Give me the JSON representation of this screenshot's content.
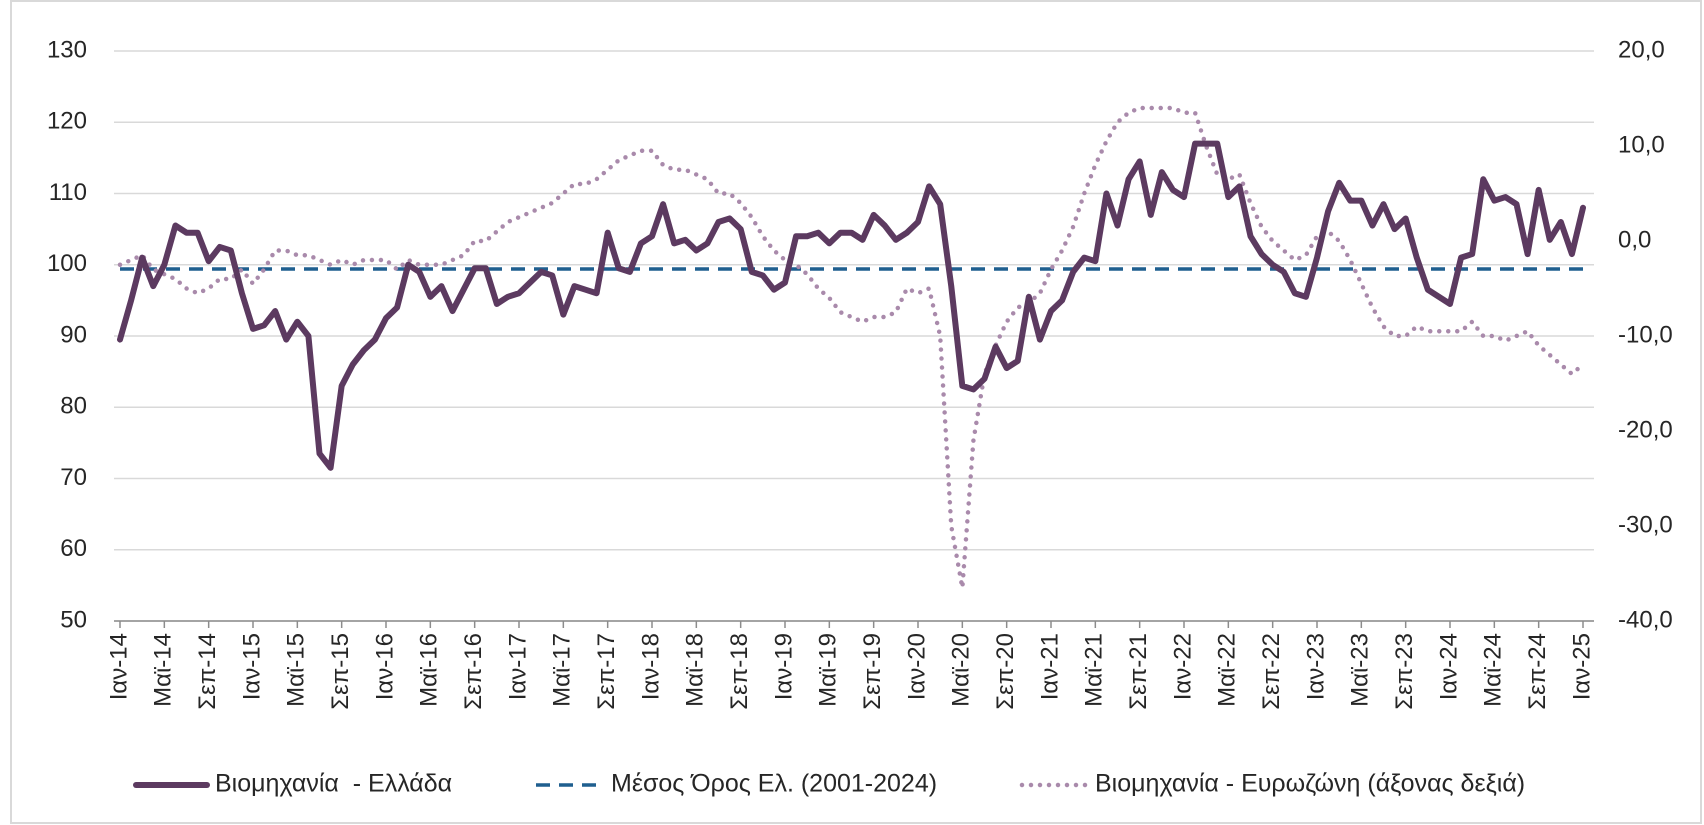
{
  "chart_data": {
    "type": "line",
    "categories": [
      "Ιαν-14",
      null,
      null,
      null,
      "Μαϊ-14",
      null,
      null,
      null,
      "Σεπ-14",
      null,
      null,
      null,
      "Ιαν-15",
      null,
      null,
      null,
      "Μαϊ-15",
      null,
      null,
      null,
      "Σεπ-15",
      null,
      null,
      null,
      "Ιαν-16",
      null,
      null,
      null,
      "Μαϊ-16",
      null,
      null,
      null,
      "Σεπ-16",
      null,
      null,
      null,
      "Ιαν-17",
      null,
      null,
      null,
      "Μαϊ-17",
      null,
      null,
      null,
      "Σεπ-17",
      null,
      null,
      null,
      "Ιαν-18",
      null,
      null,
      null,
      "Μαϊ-18",
      null,
      null,
      null,
      "Σεπ-18",
      null,
      null,
      null,
      "Ιαν-19",
      null,
      null,
      null,
      "Μαϊ-19",
      null,
      null,
      null,
      "Σεπ-19",
      null,
      null,
      null,
      "Ιαν-20",
      null,
      null,
      null,
      "Μαϊ-20",
      null,
      null,
      null,
      "Σεπ-20",
      null,
      null,
      null,
      "Ιαν-21",
      null,
      null,
      null,
      "Μαϊ-21",
      null,
      null,
      null,
      "Σεπ-21",
      null,
      null,
      null,
      "Ιαν-22",
      null,
      null,
      null,
      "Μαϊ-22",
      null,
      null,
      null,
      "Σεπ-22",
      null,
      null,
      null,
      "Ιαν-23",
      null,
      null,
      null,
      "Μαϊ-23",
      null,
      null,
      null,
      "Σεπ-23",
      null,
      null,
      null,
      "Ιαν-24",
      null,
      null,
      null,
      "Μαϊ-24",
      null,
      null,
      null,
      "Σεπ-24",
      null,
      null,
      null,
      "Ιαν-25"
    ],
    "series": [
      {
        "name": "Βιομηχανία  - Ελλάδα",
        "color": "#5c3a60",
        "line_style": "solid",
        "values": [
          89.5,
          95,
          101,
          97,
          100,
          105.5,
          104.5,
          104.5,
          100.5,
          102.5,
          102,
          96,
          91,
          91.5,
          93.5,
          89.5,
          92,
          90,
          73.5,
          71.5,
          83,
          86,
          88,
          89.5,
          92.5,
          94,
          100,
          99,
          95.5,
          97,
          93.5,
          96.5,
          99.5,
          99.5,
          94.5,
          95.5,
          96,
          97.5,
          99,
          98.5,
          93,
          97,
          96.5,
          96,
          104.5,
          99.5,
          99,
          103,
          104,
          108.5,
          103,
          103.5,
          102,
          103,
          106,
          106.5,
          105,
          99,
          98.5,
          96.5,
          97.5,
          104,
          104,
          104.5,
          103,
          104.5,
          104.5,
          103.5,
          107,
          105.5,
          103.5,
          104.5,
          106,
          111,
          108.5,
          97,
          83,
          82.5,
          84,
          88.5,
          85.5,
          86.5,
          95.5,
          89.5,
          93.5,
          95,
          99,
          101,
          100.5,
          110,
          105.5,
          112,
          114.5,
          107,
          113,
          110.5,
          109.5,
          117,
          117,
          117,
          109.5,
          111,
          104,
          101.5,
          100,
          99,
          96,
          95.5,
          101,
          107.5,
          111.5,
          109,
          109,
          105.5,
          108.5,
          105,
          106.5,
          101,
          96.5,
          95.5,
          94.5,
          101,
          101.5,
          112,
          109,
          109.5,
          108.5,
          101.5,
          110.5,
          103.5,
          106,
          101.5,
          108
        ]
      },
      {
        "name": "Μέσος Όρος Ελ. (2001-2024)",
        "color": "#1f5f8f",
        "line_style": "dashed",
        "values": [
          99.4,
          99.4,
          99.4,
          99.4,
          99.4,
          99.4,
          99.4,
          99.4,
          99.4,
          99.4,
          99.4,
          99.4,
          99.4,
          99.4,
          99.4,
          99.4,
          99.4,
          99.4,
          99.4,
          99.4,
          99.4,
          99.4,
          99.4,
          99.4,
          99.4,
          99.4,
          99.4,
          99.4,
          99.4,
          99.4,
          99.4,
          99.4,
          99.4,
          99.4,
          99.4,
          99.4,
          99.4,
          99.4,
          99.4,
          99.4,
          99.4,
          99.4,
          99.4,
          99.4,
          99.4,
          99.4,
          99.4,
          99.4,
          99.4,
          99.4,
          99.4,
          99.4,
          99.4,
          99.4,
          99.4,
          99.4,
          99.4,
          99.4,
          99.4,
          99.4,
          99.4,
          99.4,
          99.4,
          99.4,
          99.4,
          99.4,
          99.4,
          99.4,
          99.4,
          99.4,
          99.4,
          99.4,
          99.4,
          99.4,
          99.4,
          99.4,
          99.4,
          99.4,
          99.4,
          99.4,
          99.4,
          99.4,
          99.4,
          99.4,
          99.4,
          99.4,
          99.4,
          99.4,
          99.4,
          99.4,
          99.4,
          99.4,
          99.4,
          99.4,
          99.4,
          99.4,
          99.4,
          99.4,
          99.4,
          99.4,
          99.4,
          99.4,
          99.4,
          99.4,
          99.4,
          99.4,
          99.4,
          99.4,
          99.4,
          99.4,
          99.4,
          99.4,
          99.4,
          99.4,
          99.4,
          99.4,
          99.4,
          99.4,
          99.4,
          99.4,
          99.4,
          99.4,
          99.4,
          99.4,
          99.4,
          99.4,
          99.4,
          99.4,
          99.4,
          99.4,
          99.4,
          99.4,
          99.4
        ]
      },
      {
        "name": "Βιομηχανία - Ευρωζώνη (άξονας δεξιά)",
        "color": "#a98aab",
        "line_style": "dotted",
        "axis": "y2",
        "values": [
          -2.5,
          -2,
          -1.5,
          -3,
          -3.5,
          -4,
          -5,
          -5.5,
          -5,
          -4,
          -4,
          -3,
          -4.5,
          -3,
          -1,
          -1,
          -1.5,
          -1.5,
          -2,
          -2.5,
          -2,
          -2.5,
          -2,
          -2,
          -2,
          -3,
          -2,
          -2.5,
          -2.5,
          -2.5,
          -2,
          -1.5,
          0,
          0,
          1,
          2,
          2.5,
          3,
          3.5,
          4,
          5,
          6,
          6,
          6.5,
          7.5,
          8.5,
          9,
          9.5,
          9.5,
          8,
          7.5,
          7.5,
          7,
          6.5,
          5,
          5,
          4,
          2.5,
          0.5,
          -1,
          -2,
          -2.5,
          -3.5,
          -5,
          -6,
          -7.5,
          -8,
          -8.5,
          -8,
          -8,
          -7.5,
          -5,
          -5.5,
          -5,
          -10,
          -30,
          -36.5,
          -21,
          -14,
          -11,
          -8.5,
          -7,
          -6.5,
          -5.5,
          -3,
          -1,
          1.5,
          5,
          8,
          10.5,
          12.5,
          13.5,
          14,
          14,
          14,
          14,
          13.5,
          13.5,
          10,
          7,
          6.5,
          7,
          4,
          1.5,
          0,
          -1,
          -2,
          -1.5,
          0.5,
          1,
          0,
          -2,
          -4.5,
          -7,
          -9,
          -10,
          -10,
          -9,
          -9.5,
          -9.5,
          -9.5,
          -9.5,
          -8.5,
          -10,
          -10,
          -10.5,
          -10,
          -9.5,
          -11,
          -12,
          -13,
          -14,
          -13
        ]
      }
    ],
    "ylim": [
      50,
      130
    ],
    "yticks": [
      50,
      60,
      70,
      80,
      90,
      100,
      110,
      120,
      130
    ],
    "y2lim": [
      -40,
      20
    ],
    "y2ticks": [
      {
        "value": -40,
        "label": "-40,0"
      },
      {
        "value": -30,
        "label": "-30,0"
      },
      {
        "value": -20,
        "label": "-20,0"
      },
      {
        "value": -10,
        "label": "-10,0"
      },
      {
        "value": 0,
        "label": "0,0"
      },
      {
        "value": 10,
        "label": "10,0"
      },
      {
        "value": 20,
        "label": "20,0"
      }
    ],
    "grid": true,
    "legend": "bottom"
  }
}
